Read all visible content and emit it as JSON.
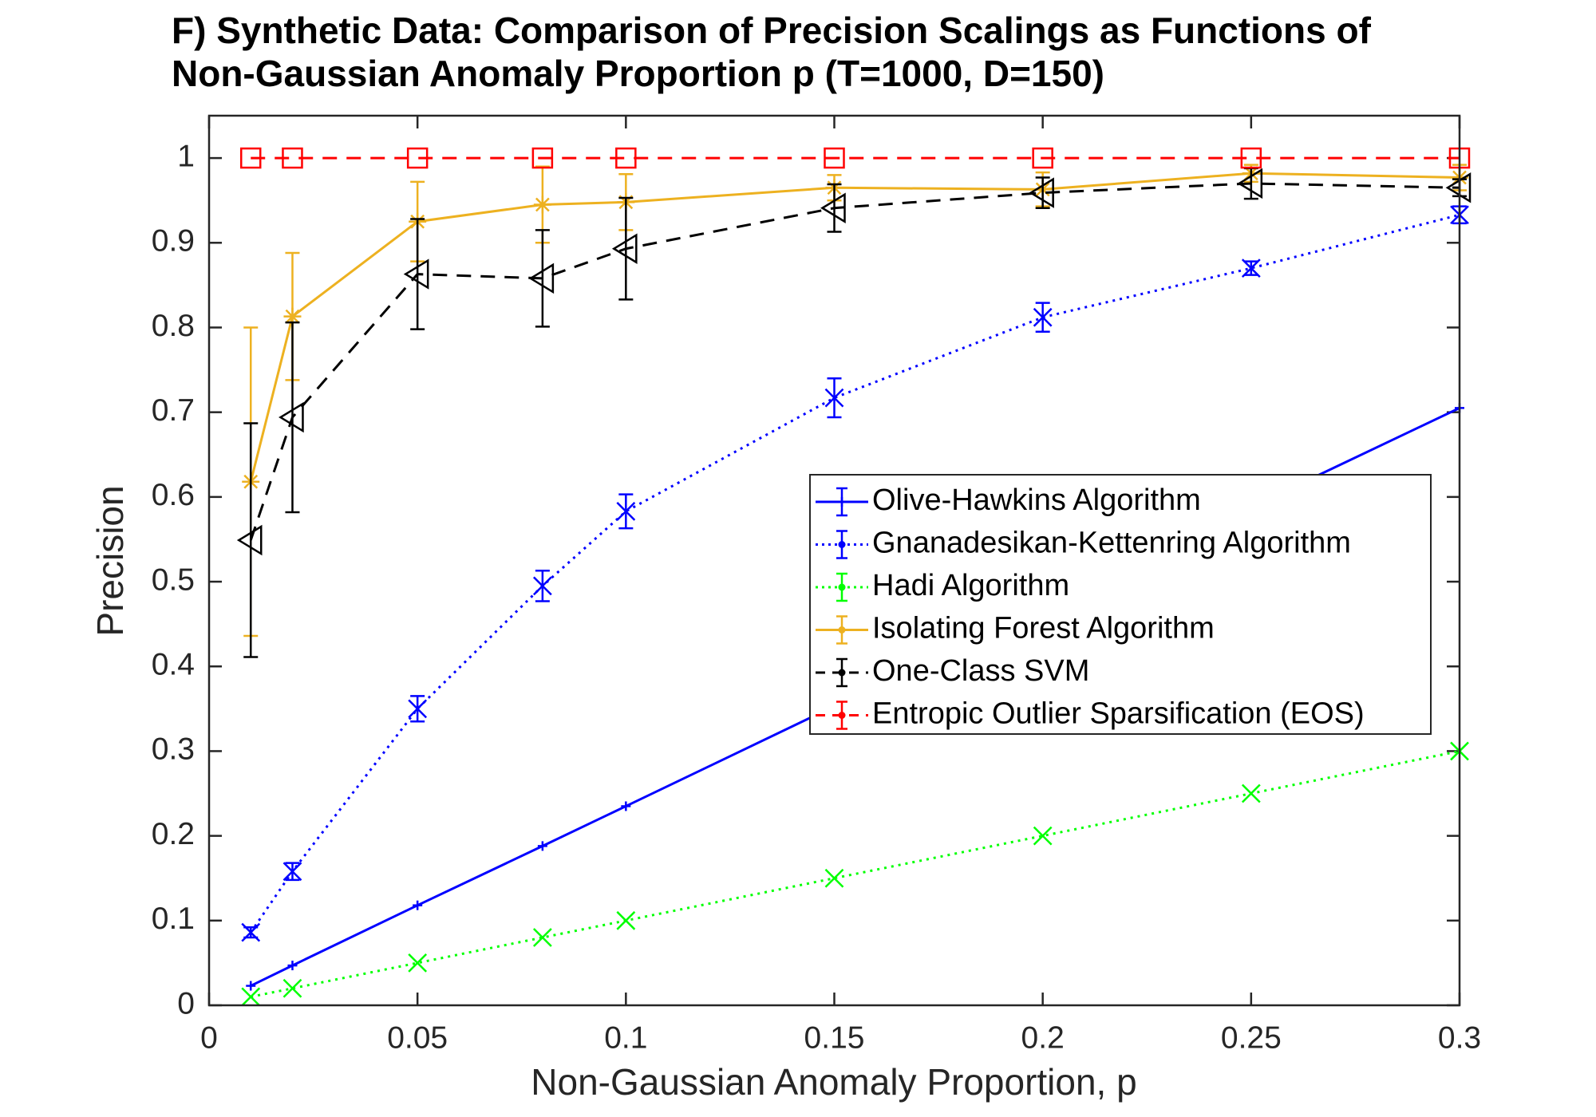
{
  "chart_data": {
    "type": "line",
    "title": "F) Synthetic Data: Comparison of Precision Scalings as Functions of Non-Gaussian Anomaly Proportion p (T=1000, D=150)",
    "title_lines": [
      "F) Synthetic Data: Comparison of Precision Scalings as Functions of",
      "Non-Gaussian Anomaly Proportion p (T=1000, D=150)"
    ],
    "xlabel": "Non-Gaussian Anomaly Proportion, p",
    "ylabel": "Precision",
    "xlim": [
      0,
      0.3
    ],
    "ylim": [
      0,
      1.05
    ],
    "xticks": [
      0,
      0.05,
      0.1,
      0.15,
      0.2,
      0.25,
      0.3
    ],
    "xtick_labels": [
      "0",
      "0.05",
      "0.1",
      "0.15",
      "0.2",
      "0.25",
      "0.3"
    ],
    "yticks": [
      0,
      0.1,
      0.2,
      0.3,
      0.4,
      0.5,
      0.6,
      0.7,
      0.8,
      0.9,
      1
    ],
    "ytick_labels": [
      "0",
      "0.1",
      "0.2",
      "0.3",
      "0.4",
      "0.5",
      "0.6",
      "0.7",
      "0.8",
      "0.9",
      "1"
    ],
    "grid": false,
    "legend_position": "right-center",
    "x": [
      0.01,
      0.02,
      0.05,
      0.08,
      0.1,
      0.15,
      0.2,
      0.25,
      0.3
    ],
    "series": [
      {
        "name": "Olive-Hawkins Algorithm",
        "color": "#0000ff",
        "line_style": "solid",
        "marker": "plus",
        "values": [
          0.023,
          0.047,
          0.118,
          0.188,
          0.235,
          0.353,
          0.47,
          0.588,
          0.705
        ],
        "errors": [
          0,
          0,
          0,
          0,
          0,
          0,
          0,
          0,
          0
        ]
      },
      {
        "name": "Gnanadesikan-Kettenring Algorithm",
        "color": "#0000ff",
        "line_style": "dotted",
        "marker": "x",
        "values": [
          0.086,
          0.158,
          0.35,
          0.495,
          0.583,
          0.717,
          0.812,
          0.87,
          0.933
        ],
        "errors": [
          0.006,
          0.01,
          0.015,
          0.018,
          0.02,
          0.023,
          0.017,
          0.008,
          0.01
        ]
      },
      {
        "name": "Hadi Algorithm",
        "color": "#00ff00",
        "line_style": "dotted",
        "marker": "x",
        "values": [
          0.01,
          0.02,
          0.05,
          0.08,
          0.1,
          0.15,
          0.2,
          0.25,
          0.3
        ],
        "errors": [
          0,
          0,
          0,
          0,
          0,
          0,
          0,
          0,
          0
        ]
      },
      {
        "name": "Isolating Forest Algorithm",
        "color": "#edb120",
        "line_style": "solid",
        "marker": "star",
        "values": [
          0.618,
          0.813,
          0.925,
          0.945,
          0.948,
          0.965,
          0.963,
          0.982,
          0.977
        ],
        "errors": [
          0.182,
          0.075,
          0.047,
          0.045,
          0.033,
          0.015,
          0.02,
          0.01,
          0.015
        ]
      },
      {
        "name": "One-Class SVM",
        "color": "#000000",
        "line_style": "dashed",
        "marker": "triangle-left",
        "values": [
          0.549,
          0.694,
          0.863,
          0.858,
          0.893,
          0.941,
          0.959,
          0.97,
          0.965
        ],
        "errors": [
          0.138,
          0.112,
          0.065,
          0.057,
          0.06,
          0.028,
          0.018,
          0.018,
          0.01
        ]
      },
      {
        "name": "Entropic Outlier Sparsification (EOS)",
        "color": "#ff0000",
        "line_style": "dashed",
        "marker": "square",
        "values": [
          1,
          1,
          1,
          1,
          1,
          1,
          1,
          1,
          1
        ],
        "errors": [
          0,
          0,
          0,
          0,
          0,
          0,
          0,
          0,
          0
        ]
      }
    ]
  }
}
